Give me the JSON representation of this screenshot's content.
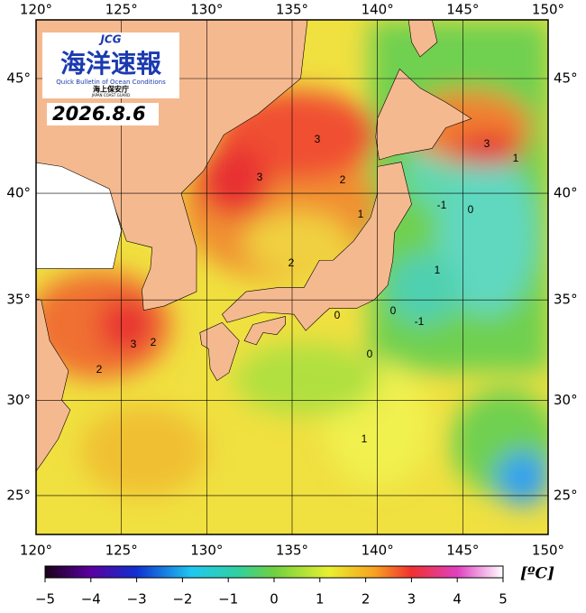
{
  "logo": {
    "badge": "JCG",
    "title": "海洋速報",
    "subtitle": "Quick Bulletin of Ocean Conditions",
    "agency": "海上保安庁",
    "agency_en": "JAPAN COAST GUARD"
  },
  "date": "2026.8.6",
  "axes": {
    "lon_ticks": [
      {
        "value": 120,
        "label": "120°"
      },
      {
        "value": 125,
        "label": "125°"
      },
      {
        "value": 130,
        "label": "130°"
      },
      {
        "value": 135,
        "label": "135°"
      },
      {
        "value": 140,
        "label": "140°"
      },
      {
        "value": 145,
        "label": "145°"
      },
      {
        "value": 150,
        "label": "150°"
      }
    ],
    "lat_ticks": [
      {
        "value": 45,
        "label": "45°"
      },
      {
        "value": 40,
        "label": "40°"
      },
      {
        "value": 35,
        "label": "35°"
      },
      {
        "value": 30,
        "label": "30°"
      },
      {
        "value": 25,
        "label": "25°"
      }
    ]
  },
  "contour_labels": [
    3,
    3,
    2,
    1,
    2,
    3,
    2,
    2,
    3,
    1,
    -1,
    0,
    1,
    0,
    0,
    -1,
    0,
    1
  ],
  "colorbar": {
    "ticks": [
      {
        "value": -5,
        "label": "−5"
      },
      {
        "value": -4,
        "label": "−4"
      },
      {
        "value": -3,
        "label": "−3"
      },
      {
        "value": -2,
        "label": "−2"
      },
      {
        "value": -1,
        "label": "−1"
      },
      0,
      1,
      2,
      3,
      4,
      5
    ],
    "unit": "[ºC]"
  }
}
